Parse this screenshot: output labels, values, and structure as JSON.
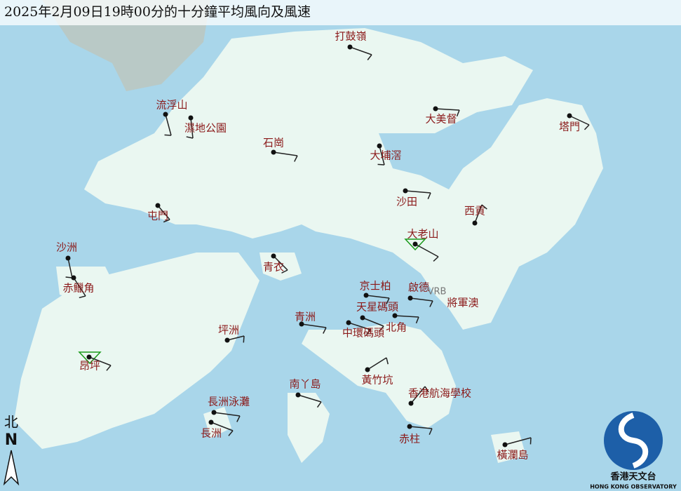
{
  "header": {
    "title": "2025年2月09日19時00分的十分鐘平均風向及風速"
  },
  "stations": [
    "打鼓嶺",
    "流浮山",
    "濕地公園",
    "石崗",
    "大美督",
    "塔門",
    "大埔滘",
    "沙田",
    "西貢",
    "屯門",
    "大老山",
    "沙洲",
    "赤鱲角",
    "青衣",
    "京士柏",
    "啟德",
    "將軍澳",
    "天星碼頭",
    "青洲",
    "北角",
    "中環碼頭",
    "坪洲",
    "昂坪",
    "黃竹坑",
    "南丫島",
    "香港航海學校",
    "長洲泳灘",
    "長洲",
    "赤柱",
    "橫瀾島"
  ],
  "vrb": "VRB",
  "north": {
    "chinese": "北",
    "letter": "N"
  },
  "logo": {
    "chinese": "香港天文台",
    "english": "HONG KONG OBSERVATORY"
  }
}
